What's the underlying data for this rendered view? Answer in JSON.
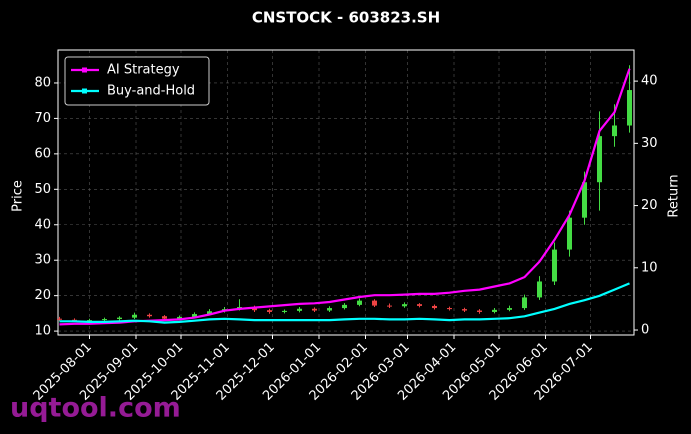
{
  "chart_data": {
    "type": "candlestick",
    "title": "CNSTOCK - 603823.SH",
    "y_label": "Price",
    "y2_label": "Return",
    "watermark": "uqtool.com",
    "x": [
      "2025-07-12",
      "2025-07-22",
      "2025-08-01",
      "2025-08-11",
      "2025-08-21",
      "2025-08-31",
      "2025-09-10",
      "2025-09-20",
      "2025-09-30",
      "2025-10-10",
      "2025-10-20",
      "2025-10-30",
      "2025-11-09",
      "2025-11-19",
      "2025-11-29",
      "2025-12-09",
      "2025-12-19",
      "2025-12-29",
      "2026-01-08",
      "2026-01-18",
      "2026-01-28",
      "2026-02-07",
      "2026-02-17",
      "2026-02-27",
      "2026-03-09",
      "2026-03-19",
      "2026-03-29",
      "2026-04-08",
      "2026-04-18",
      "2026-04-28",
      "2026-05-08",
      "2026-05-18",
      "2026-05-28",
      "2026-06-07",
      "2026-06-17",
      "2026-06-27",
      "2026-07-07",
      "2026-07-17",
      "2026-07-27"
    ],
    "open": [
      13.5,
      13.2,
      13.0,
      13.1,
      13.4,
      13.8,
      14.6,
      14.2,
      13.5,
      14.0,
      14.8,
      15.6,
      16.2,
      16.8,
      15.9,
      15.4,
      15.7,
      16.3,
      15.8,
      16.5,
      17.4,
      18.6,
      17.2,
      17.0,
      17.6,
      17.1,
      16.5,
      16.2,
      15.8,
      15.4,
      16.0,
      16.5,
      19.5,
      24.0,
      33.0,
      42.0,
      52.0,
      65.0,
      68.0
    ],
    "high": [
      14.0,
      13.6,
      13.5,
      13.8,
      14.2,
      15.2,
      15.0,
      14.5,
      14.4,
      15.3,
      16.2,
      16.8,
      19.0,
      17.2,
      16.3,
      16.1,
      16.8,
      16.7,
      17.0,
      17.9,
      19.2,
      19.0,
      17.8,
      18.1,
      17.9,
      17.5,
      16.9,
      16.6,
      16.2,
      16.5,
      17.2,
      20.3,
      25.5,
      35.0,
      44.0,
      55.0,
      72.0,
      74.0,
      85.0
    ],
    "low": [
      12.8,
      12.7,
      12.6,
      12.7,
      13.0,
      13.4,
      13.8,
      13.2,
      13.1,
      13.7,
      14.5,
      15.2,
      15.8,
      15.4,
      14.9,
      15.0,
      15.3,
      15.4,
      15.4,
      16.1,
      17.0,
      16.8,
      16.5,
      16.6,
      16.7,
      16.1,
      15.8,
      15.4,
      14.9,
      15.0,
      15.6,
      16.0,
      18.8,
      23.0,
      31.0,
      40.0,
      44.0,
      62.0,
      66.0
    ],
    "close": [
      13.2,
      13.0,
      13.1,
      13.4,
      13.8,
      14.6,
      14.2,
      13.5,
      14.0,
      14.8,
      15.6,
      16.2,
      16.8,
      15.9,
      15.4,
      15.7,
      16.3,
      15.8,
      16.5,
      17.4,
      18.6,
      17.2,
      17.0,
      17.6,
      17.1,
      16.5,
      16.2,
      15.8,
      15.4,
      16.0,
      16.5,
      19.5,
      24.0,
      33.0,
      42.0,
      52.0,
      65.0,
      68.0,
      78.0
    ],
    "up_color": "#44dd44",
    "down_color": "#ee4444",
    "series": [
      {
        "name": "AI Strategy",
        "color": "#ff00ff",
        "axis": "y2",
        "values": [
          0.9,
          1.0,
          1.0,
          1.1,
          1.2,
          1.4,
          1.5,
          1.6,
          1.7,
          2.0,
          2.5,
          3.1,
          3.4,
          3.6,
          3.8,
          4.0,
          4.2,
          4.3,
          4.5,
          4.9,
          5.3,
          5.6,
          5.6,
          5.7,
          5.8,
          5.8,
          6.0,
          6.3,
          6.5,
          7.0,
          7.5,
          8.5,
          11.0,
          14.5,
          18.5,
          24.0,
          32.0,
          35.0,
          42.0
        ]
      },
      {
        "name": "Buy-and-Hold",
        "color": "#00ffff",
        "axis": "y2",
        "values": [
          1.4,
          1.4,
          1.3,
          1.3,
          1.4,
          1.5,
          1.4,
          1.2,
          1.3,
          1.5,
          1.7,
          1.8,
          1.7,
          1.6,
          1.6,
          1.6,
          1.6,
          1.6,
          1.6,
          1.7,
          1.8,
          1.8,
          1.7,
          1.7,
          1.8,
          1.7,
          1.6,
          1.7,
          1.7,
          1.8,
          1.9,
          2.2,
          2.8,
          3.4,
          4.2,
          4.8,
          5.5,
          6.5,
          7.5
        ]
      }
    ],
    "xlim": [
      "2025-07-11",
      "2026-07-30"
    ],
    "xticks": [
      "2025-08-01",
      "2025-09-01",
      "2025-10-01",
      "2025-11-01",
      "2025-12-01",
      "2026-01-01",
      "2026-02-01",
      "2026-03-01",
      "2026-04-01",
      "2026-05-01",
      "2026-06-01",
      "2026-07-01"
    ],
    "ylim": [
      8.9,
      89.3
    ],
    "yticks": [
      10,
      20,
      30,
      40,
      50,
      60,
      70,
      80
    ],
    "y2lim": [
      -0.8,
      45
    ],
    "y2ticks": [
      0,
      10,
      20,
      30,
      40
    ],
    "grid": true,
    "legend": "upper left"
  }
}
